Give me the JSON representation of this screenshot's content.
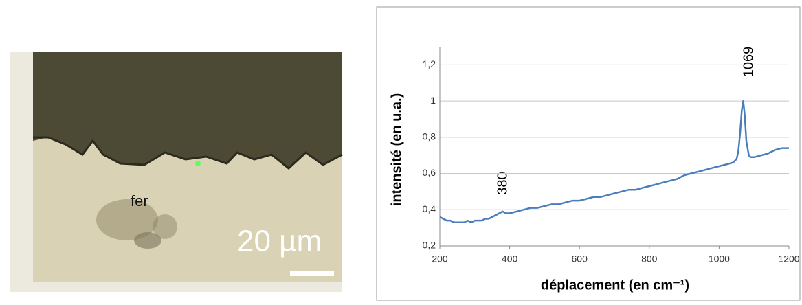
{
  "micrograph": {
    "label": "fer",
    "scale": "20 µm"
  },
  "chart_data": {
    "type": "line",
    "x_label": "déplacement (en cm⁻¹)",
    "y_label": "intensité (en u.a.)",
    "annotations": [
      "1069",
      "380"
    ],
    "color": "#4a7ebb",
    "x": [
      200,
      210,
      220,
      230,
      240,
      250,
      260,
      270,
      280,
      290,
      300,
      310,
      320,
      330,
      340,
      350,
      360,
      370,
      380,
      390,
      400,
      420,
      440,
      460,
      480,
      500,
      520,
      540,
      560,
      580,
      600,
      620,
      640,
      660,
      680,
      700,
      720,
      740,
      760,
      780,
      800,
      820,
      840,
      860,
      880,
      900,
      920,
      940,
      960,
      980,
      1000,
      1020,
      1040,
      1050,
      1055,
      1060,
      1065,
      1069,
      1073,
      1078,
      1085,
      1090,
      1100,
      1120,
      1140,
      1160,
      1180,
      1200
    ],
    "values": [
      0.36,
      0.35,
      0.34,
      0.34,
      0.33,
      0.33,
      0.33,
      0.33,
      0.34,
      0.33,
      0.34,
      0.34,
      0.34,
      0.35,
      0.35,
      0.36,
      0.37,
      0.38,
      0.39,
      0.38,
      0.38,
      0.39,
      0.4,
      0.41,
      0.41,
      0.42,
      0.43,
      0.43,
      0.44,
      0.45,
      0.45,
      0.46,
      0.47,
      0.47,
      0.48,
      0.49,
      0.5,
      0.51,
      0.51,
      0.52,
      0.53,
      0.54,
      0.55,
      0.56,
      0.57,
      0.59,
      0.6,
      0.61,
      0.62,
      0.63,
      0.64,
      0.65,
      0.66,
      0.68,
      0.72,
      0.82,
      0.95,
      1.0,
      0.93,
      0.78,
      0.7,
      0.69,
      0.69,
      0.7,
      0.71,
      0.73,
      0.74,
      0.74
    ],
    "xlim": [
      200,
      1200
    ],
    "xticks": [
      200,
      400,
      600,
      800,
      1000,
      1200
    ],
    "ylim": [
      0.2,
      1.3
    ],
    "yticks": [
      {
        "value": 0.2,
        "label": "0,2"
      },
      {
        "value": 0.4,
        "label": "0,4"
      },
      {
        "value": 0.6,
        "label": "0,6"
      },
      {
        "value": 0.8,
        "label": "0,8"
      },
      1,
      {
        "value": 1.2,
        "label": "1,2"
      }
    ],
    "grid": true
  }
}
